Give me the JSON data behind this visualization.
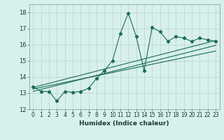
{
  "title": "",
  "xlabel": "Humidex (Indice chaleur)",
  "xlim": [
    -0.5,
    23.5
  ],
  "ylim": [
    12,
    18.5
  ],
  "yticks": [
    12,
    13,
    14,
    15,
    16,
    17,
    18
  ],
  "xticks": [
    0,
    1,
    2,
    3,
    4,
    5,
    6,
    7,
    8,
    9,
    10,
    11,
    12,
    13,
    14,
    15,
    16,
    17,
    18,
    19,
    20,
    21,
    22,
    23
  ],
  "bg_color": "#d8f0ec",
  "plot_bg_color": "#d8f0ec",
  "grid_color": "#c0d8d0",
  "line_color": "#1a6b5a",
  "line1_x": [
    0,
    1,
    2,
    3,
    4,
    5,
    6,
    7,
    8,
    9,
    10,
    11,
    12,
    13,
    14,
    15,
    16,
    17,
    18,
    19,
    20,
    21,
    22,
    23
  ],
  "line1_y": [
    13.4,
    13.1,
    13.1,
    12.5,
    13.1,
    13.05,
    13.1,
    13.3,
    13.9,
    14.4,
    15.0,
    16.7,
    17.95,
    16.5,
    14.4,
    17.05,
    16.8,
    16.2,
    16.5,
    16.4,
    16.2,
    16.4,
    16.3,
    16.2
  ],
  "line2_x": [
    0,
    23
  ],
  "line2_y": [
    13.35,
    16.25
  ],
  "line3_x": [
    0,
    23
  ],
  "line3_y": [
    13.1,
    15.95
  ],
  "line4_x": [
    0,
    23
  ],
  "line4_y": [
    13.25,
    15.6
  ]
}
